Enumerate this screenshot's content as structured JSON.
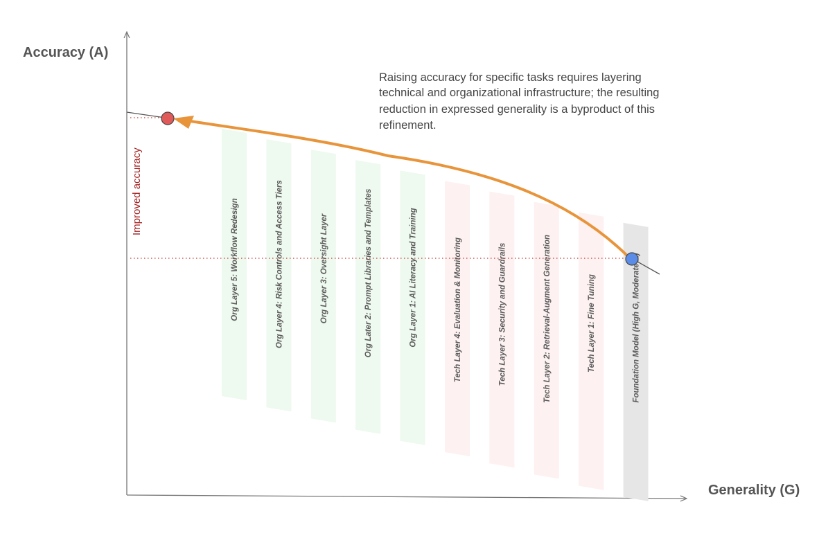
{
  "axes": {
    "y_title": "Accuracy (A)",
    "x_title": "Generality (G)"
  },
  "annotation": {
    "lines": [
      "Raising accuracy for specific tasks requires layering",
      "technical and organizational infrastructure; the resulting",
      "reduction in expressed generality is a byproduct of this",
      "refinement."
    ]
  },
  "improved_label": "Improved accuracy",
  "layers": [
    {
      "label": "Org Layer 5: Workflow Redesign",
      "kind": "org"
    },
    {
      "label": "Org Layer 4: Risk Controls and Access Tiers",
      "kind": "org"
    },
    {
      "label": "Org Layer 3: Oversight Layer",
      "kind": "org"
    },
    {
      "label": "Org Later 2: Prompt Libraries and Templates",
      "kind": "org"
    },
    {
      "label": "Org Layer 1: AI Literacy and Training",
      "kind": "org"
    },
    {
      "label": "Tech Layer 4: Evaluation & Monitoring",
      "kind": "tech"
    },
    {
      "label": "Tech Layer 3: Security and Guardrails",
      "kind": "tech"
    },
    {
      "label": "Tech Layer 2: Retrieval-Augment Generation",
      "kind": "tech"
    },
    {
      "label": "Tech Layer 1: Fine Tuning",
      "kind": "tech"
    },
    {
      "label": "Foundation Model (High G, Moderate A)",
      "kind": "foundation"
    }
  ],
  "colors": {
    "org_band": "#eef9ef",
    "tech_band": "#fdf1f1",
    "foundation_band": "#e6e6e6",
    "curve": "#e8943a",
    "start_point": "#5b8de6",
    "end_point": "#e05a5a",
    "guide_line": "#c0392b",
    "axis": "#777777"
  }
}
